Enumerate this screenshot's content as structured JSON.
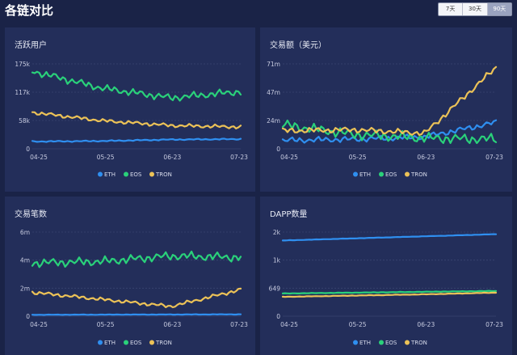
{
  "header": {
    "title": "各链对比",
    "tabs": [
      {
        "label": "7天",
        "active": false
      },
      {
        "label": "30天",
        "active": false
      },
      {
        "label": "90天",
        "active": true
      }
    ]
  },
  "colors": {
    "ETH": "#2f8ff0",
    "EOS": "#2ad17a",
    "TRON": "#ecc257"
  },
  "chart_data": [
    {
      "type": "line",
      "title": "活跃用户",
      "x": [
        "04-25",
        "05-25",
        "06-23",
        "07-23"
      ],
      "yticks": [
        "0",
        "58k",
        "117k",
        "175k"
      ],
      "ylim": [
        0,
        175000
      ],
      "grid": true,
      "legend_position": "bottom",
      "series": [
        {
          "name": "ETH",
          "values": [
            15000,
            16000,
            19000,
            20000
          ]
        },
        {
          "name": "EOS",
          "values": [
            160000,
            125000,
            105000,
            118000
          ]
        },
        {
          "name": "TRON",
          "values": [
            75000,
            58000,
            48000,
            45000
          ]
        }
      ]
    },
    {
      "type": "line",
      "title": "交易额（美元）",
      "x": [
        "04-25",
        "05-25",
        "06-23",
        "07-23"
      ],
      "yticks": [
        "0",
        "24m",
        "47m",
        "71m"
      ],
      "ylim": [
        0,
        71000000
      ],
      "grid": true,
      "legend_position": "bottom",
      "series": [
        {
          "name": "ETH",
          "values": [
            7000000,
            8000000,
            10000000,
            22000000
          ]
        },
        {
          "name": "EOS",
          "values": [
            20000000,
            12000000,
            9000000,
            8000000
          ]
        },
        {
          "name": "TRON",
          "values": [
            15000000,
            16000000,
            13000000,
            68000000
          ]
        }
      ]
    },
    {
      "type": "line",
      "title": "交易笔数",
      "x": [
        "04-25",
        "05-25",
        "06-23",
        "07-23"
      ],
      "yticks": [
        "0",
        "2m",
        "4m",
        "6m"
      ],
      "ylim": [
        0,
        6000000
      ],
      "grid": true,
      "legend_position": "bottom",
      "series": [
        {
          "name": "ETH",
          "values": [
            100000,
            110000,
            120000,
            130000
          ]
        },
        {
          "name": "EOS",
          "values": [
            3800000,
            3900000,
            4300000,
            4200000
          ]
        },
        {
          "name": "TRON",
          "values": [
            1700000,
            1200000,
            700000,
            1900000
          ]
        }
      ]
    },
    {
      "type": "line",
      "title": "DAPP数量",
      "x": [
        "04-25",
        "05-25",
        "06-23",
        "07-23"
      ],
      "yticks": [
        "0",
        "649",
        "1k",
        "2k"
      ],
      "ylim": [
        0,
        2000
      ],
      "grid": true,
      "legend_position": "bottom",
      "series": [
        {
          "name": "ETH",
          "values": [
            1800,
            1850,
            1900,
            1950
          ]
        },
        {
          "name": "EOS",
          "values": [
            540,
            560,
            580,
            600
          ]
        },
        {
          "name": "TRON",
          "values": [
            460,
            490,
            520,
            560
          ]
        }
      ]
    }
  ]
}
